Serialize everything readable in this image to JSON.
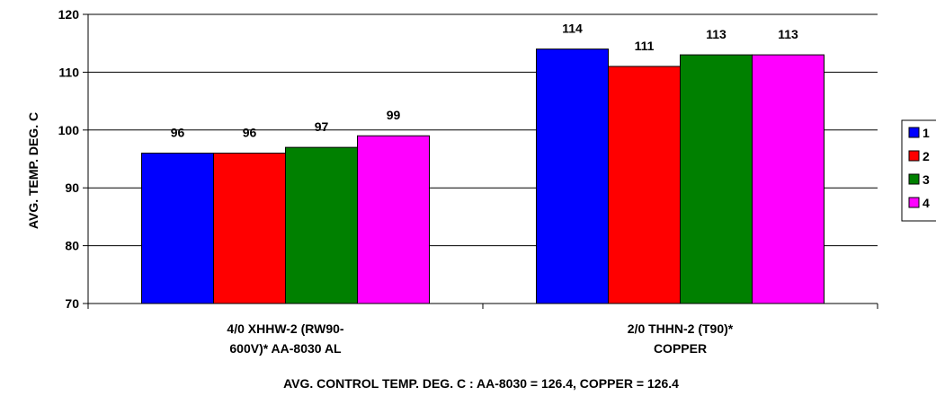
{
  "chart_data": {
    "type": "bar",
    "title": "",
    "ylabel": "AVG. TEMP. DEG. C",
    "xlabel": "AVG. CONTROL TEMP. DEG. C : AA-8030 = 126.4, COPPER = 126.4",
    "categories": [
      [
        "4/0 XHHW-2 (RW90-",
        "600V)* AA-8030 AL"
      ],
      [
        "2/0 THHN-2 (T90)*",
        "COPPER"
      ]
    ],
    "ylim": [
      70,
      120
    ],
    "yticks": [
      70,
      80,
      90,
      100,
      110,
      120
    ],
    "grid": true,
    "legend_position": "right",
    "series": [
      {
        "name": "1",
        "color": "#0000ff",
        "values": [
          96,
          114
        ]
      },
      {
        "name": "2",
        "color": "#ff0000",
        "values": [
          96,
          111
        ]
      },
      {
        "name": "3",
        "color": "#008000",
        "values": [
          97,
          113
        ]
      },
      {
        "name": "4",
        "color": "#ff00ff",
        "values": [
          99,
          113
        ]
      }
    ]
  }
}
